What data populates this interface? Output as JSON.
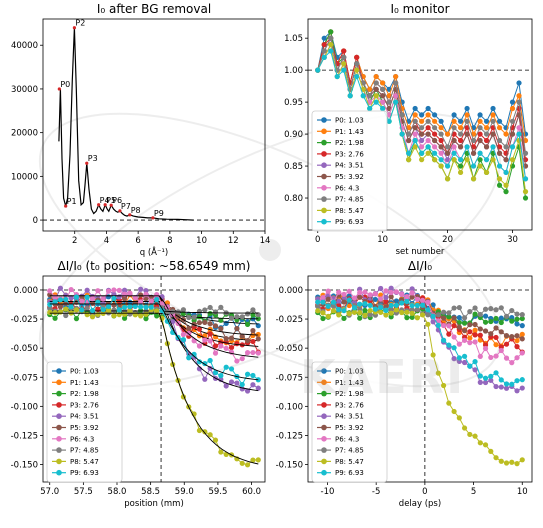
{
  "watermark": "KAERI",
  "legend_entries": [
    {
      "label": "P0: 1.03",
      "color": "#1f77b4"
    },
    {
      "label": "P1: 1.43",
      "color": "#ff7f0e"
    },
    {
      "label": "P2: 1.98",
      "color": "#2ca02c"
    },
    {
      "label": "P3: 2.76",
      "color": "#d62728"
    },
    {
      "label": "P4: 3.51",
      "color": "#9467bd"
    },
    {
      "label": "P5: 3.92",
      "color": "#8c564b"
    },
    {
      "label": "P6: 4.3",
      "color": "#e377c2"
    },
    {
      "label": "P7: 4.85",
      "color": "#7f7f7f"
    },
    {
      "label": "P8: 5.47",
      "color": "#bcbd22"
    },
    {
      "label": "P9: 6.93",
      "color": "#17becf"
    }
  ],
  "chart_data": [
    {
      "type": "line",
      "title": "I₀ after BG removal",
      "xlabel": "q (Å⁻¹)",
      "ylabel": "",
      "xlim": [
        0,
        14
      ],
      "ylim": [
        -2500,
        46000
      ],
      "xticks": [
        "2",
        "4",
        "6",
        "8",
        "10",
        "12",
        "14"
      ],
      "yticks": [
        "0",
        "10000",
        "20000",
        "30000",
        "40000"
      ],
      "grid": false,
      "x": [
        1.0,
        1.1,
        1.2,
        1.3,
        1.43,
        1.55,
        1.7,
        1.85,
        1.98,
        2.1,
        2.25,
        2.4,
        2.55,
        2.65,
        2.76,
        2.9,
        3.05,
        3.2,
        3.35,
        3.51,
        3.65,
        3.78,
        3.92,
        4.05,
        4.15,
        4.3,
        4.45,
        4.6,
        4.72,
        4.85,
        5.0,
        5.15,
        5.3,
        5.47,
        5.7,
        6.0,
        6.3,
        6.6,
        6.93,
        7.3,
        7.8,
        8.5,
        9.0,
        9.5
      ],
      "values": [
        18000,
        30000,
        14000,
        5000,
        3200,
        5000,
        15000,
        32000,
        44000,
        30000,
        9000,
        3500,
        4000,
        8000,
        13000,
        7000,
        2500,
        1500,
        2000,
        3500,
        2500,
        2000,
        3500,
        2500,
        2000,
        3400,
        2500,
        2000,
        1800,
        2100,
        1500,
        1100,
        900,
        1200,
        900,
        700,
        600,
        500,
        500,
        300,
        200,
        150,
        80,
        0
      ],
      "peaks": [
        {
          "label": "P0",
          "x": 1.03,
          "y": 30000
        },
        {
          "label": "P1",
          "x": 1.43,
          "y": 3200
        },
        {
          "label": "P2",
          "x": 1.98,
          "y": 44000
        },
        {
          "label": "P3",
          "x": 2.76,
          "y": 13000
        },
        {
          "label": "P4",
          "x": 3.51,
          "y": 3500
        },
        {
          "label": "P5",
          "x": 3.92,
          "y": 3500
        },
        {
          "label": "P6",
          "x": 4.3,
          "y": 3400
        },
        {
          "label": "P7",
          "x": 4.85,
          "y": 2100
        },
        {
          "label": "P8",
          "x": 5.47,
          "y": 1200
        },
        {
          "label": "P9",
          "x": 6.93,
          "y": 500
        }
      ],
      "reference_line": 0
    },
    {
      "type": "line",
      "title": "I₀ monitor",
      "xlabel": "set number",
      "ylabel": "",
      "xlim": [
        -1.5,
        33
      ],
      "ylim": [
        0.75,
        1.08
      ],
      "xticks": [
        "0",
        "10",
        "20",
        "30"
      ],
      "yticks": [
        "0.80",
        "0.85",
        "0.90",
        "0.95",
        "1.00",
        "1.05"
      ],
      "reference_line": 1.0,
      "legend_position": "lower-left",
      "x": [
        0,
        1,
        2,
        3,
        4,
        5,
        6,
        7,
        8,
        9,
        10,
        11,
        12,
        13,
        14,
        15,
        16,
        17,
        18,
        19,
        20,
        21,
        22,
        23,
        24,
        25,
        26,
        27,
        28,
        29,
        30,
        31,
        32
      ],
      "series": [
        {
          "name": "P0: 1.03",
          "values": [
            1.0,
            1.05,
            1.06,
            1.02,
            1.03,
            0.98,
            1.02,
            0.99,
            0.97,
            0.99,
            0.98,
            0.97,
            0.99,
            0.95,
            0.92,
            0.94,
            0.93,
            0.94,
            0.93,
            0.92,
            0.9,
            0.93,
            0.92,
            0.94,
            0.91,
            0.93,
            0.92,
            0.94,
            0.92,
            0.91,
            0.95,
            0.98,
            0.9
          ]
        },
        {
          "name": "P1: 1.43",
          "values": [
            1.0,
            1.04,
            1.06,
            1.01,
            1.03,
            0.98,
            1.02,
            0.99,
            0.97,
            0.99,
            0.98,
            0.96,
            0.99,
            0.94,
            0.91,
            0.93,
            0.92,
            0.93,
            0.92,
            0.91,
            0.9,
            0.92,
            0.91,
            0.93,
            0.9,
            0.92,
            0.91,
            0.93,
            0.91,
            0.9,
            0.94,
            0.96,
            0.89
          ]
        },
        {
          "name": "P2: 1.98",
          "values": [
            1.0,
            1.04,
            1.06,
            1.01,
            1.02,
            0.97,
            1.01,
            0.98,
            0.95,
            0.97,
            0.95,
            0.93,
            0.96,
            0.9,
            0.86,
            0.89,
            0.87,
            0.88,
            0.86,
            0.85,
            0.83,
            0.86,
            0.85,
            0.87,
            0.83,
            0.86,
            0.84,
            0.87,
            0.82,
            0.81,
            0.85,
            0.88,
            0.8
          ]
        },
        {
          "name": "P3: 2.76",
          "values": [
            1.0,
            1.04,
            1.05,
            1.01,
            1.03,
            0.98,
            1.02,
            0.98,
            0.96,
            0.98,
            0.97,
            0.95,
            0.98,
            0.93,
            0.9,
            0.92,
            0.9,
            0.91,
            0.9,
            0.89,
            0.87,
            0.9,
            0.89,
            0.91,
            0.88,
            0.9,
            0.89,
            0.91,
            0.88,
            0.87,
            0.91,
            0.94,
            0.86
          ]
        },
        {
          "name": "P4: 3.51",
          "values": [
            1.0,
            1.03,
            1.05,
            1.0,
            1.02,
            0.97,
            1.01,
            0.98,
            0.96,
            0.97,
            0.96,
            0.94,
            0.97,
            0.92,
            0.89,
            0.91,
            0.89,
            0.9,
            0.89,
            0.88,
            0.86,
            0.89,
            0.88,
            0.9,
            0.87,
            0.89,
            0.88,
            0.9,
            0.87,
            0.86,
            0.9,
            0.93,
            0.85
          ]
        },
        {
          "name": "P5: 3.92",
          "values": [
            1.0,
            1.03,
            1.05,
            1.0,
            1.02,
            0.97,
            1.01,
            0.98,
            0.96,
            0.97,
            0.96,
            0.94,
            0.97,
            0.92,
            0.89,
            0.91,
            0.9,
            0.9,
            0.89,
            0.88,
            0.87,
            0.89,
            0.88,
            0.9,
            0.87,
            0.89,
            0.88,
            0.9,
            0.87,
            0.86,
            0.9,
            0.93,
            0.85
          ]
        },
        {
          "name": "P6: 4.3",
          "values": [
            1.0,
            1.02,
            1.04,
            0.99,
            1.01,
            0.96,
            1.0,
            0.97,
            0.95,
            0.96,
            0.95,
            0.93,
            0.96,
            0.91,
            0.87,
            0.9,
            0.88,
            0.89,
            0.88,
            0.87,
            0.85,
            0.88,
            0.86,
            0.88,
            0.85,
            0.87,
            0.86,
            0.88,
            0.85,
            0.84,
            0.88,
            0.91,
            0.83
          ]
        },
        {
          "name": "P7: 4.85",
          "values": [
            1.0,
            1.03,
            1.05,
            1.0,
            1.02,
            0.97,
            1.01,
            0.98,
            0.96,
            0.98,
            0.97,
            0.95,
            0.98,
            0.93,
            0.9,
            0.92,
            0.91,
            0.92,
            0.91,
            0.9,
            0.88,
            0.91,
            0.9,
            0.92,
            0.89,
            0.91,
            0.9,
            0.92,
            0.89,
            0.88,
            0.92,
            0.95,
            0.87
          ]
        },
        {
          "name": "P8: 5.47",
          "values": [
            1.0,
            1.02,
            1.04,
            0.99,
            1.01,
            0.96,
            1.0,
            0.97,
            0.94,
            0.96,
            0.94,
            0.92,
            0.95,
            0.9,
            0.86,
            0.88,
            0.86,
            0.87,
            0.86,
            0.85,
            0.83,
            0.86,
            0.84,
            0.86,
            0.83,
            0.85,
            0.84,
            0.86,
            0.83,
            0.82,
            0.86,
            0.89,
            0.81
          ]
        },
        {
          "name": "P9: 6.93",
          "values": [
            1.0,
            1.02,
            1.03,
            0.99,
            1.0,
            0.96,
            0.99,
            0.96,
            0.94,
            0.95,
            0.94,
            0.92,
            0.95,
            0.9,
            0.87,
            0.89,
            0.87,
            0.88,
            0.87,
            0.86,
            0.85,
            0.87,
            0.86,
            0.88,
            0.85,
            0.87,
            0.86,
            0.88,
            0.85,
            0.84,
            0.88,
            0.9,
            0.83
          ]
        }
      ]
    },
    {
      "type": "line",
      "title": "ΔI/I₀ (t₀ position: ~58.6549 mm)",
      "xlabel": "position (mm)",
      "ylabel": "",
      "xlim": [
        56.9,
        60.2
      ],
      "ylim": [
        -0.165,
        0.012
      ],
      "xticks": [
        "57.0",
        "57.5",
        "58.0",
        "58.5",
        "59.0",
        "59.5",
        "60.0"
      ],
      "yticks": [
        "0.000",
        "-0.025",
        "-0.050",
        "-0.075",
        "-0.100",
        "-0.125",
        "-0.150"
      ],
      "reference_line": 0.0,
      "t0_line": 58.6549,
      "legend_position": "lower-left",
      "x_range": [
        57.0,
        60.1
      ],
      "n_points": 40,
      "series": [
        {
          "name": "P0: 1.03",
          "pre": -0.01,
          "final": -0.03,
          "noise": 0.006
        },
        {
          "name": "P1: 1.43",
          "pre": -0.01,
          "final": -0.045,
          "noise": 0.006
        },
        {
          "name": "P2: 1.98",
          "pre": -0.02,
          "final": -0.025,
          "noise": 0.005
        },
        {
          "name": "P3: 2.76",
          "pre": -0.012,
          "final": -0.05,
          "noise": 0.006
        },
        {
          "name": "P4: 3.51",
          "pre": -0.005,
          "final": -0.09,
          "noise": 0.007
        },
        {
          "name": "P5: 3.92",
          "pre": -0.01,
          "final": -0.04,
          "noise": 0.006
        },
        {
          "name": "P6: 4.3",
          "pre": -0.005,
          "final": -0.06,
          "noise": 0.006
        },
        {
          "name": "P7: 4.85",
          "pre": -0.018,
          "final": -0.02,
          "noise": 0.005
        },
        {
          "name": "P8: 5.47",
          "pre": -0.02,
          "final": -0.155,
          "noise": 0.004
        },
        {
          "name": "P9: 6.93",
          "pre": -0.012,
          "final": -0.08,
          "noise": 0.006
        }
      ]
    },
    {
      "type": "line",
      "title": "ΔI/I₀",
      "xlabel": "delay (ps)",
      "ylabel": "",
      "xlim": [
        -12,
        11
      ],
      "ylim": [
        -0.165,
        0.012
      ],
      "xticks": [
        "-10",
        "-5",
        "0",
        "5",
        "10"
      ],
      "yticks": [
        "0.000",
        "-0.025",
        "-0.050",
        "-0.075",
        "-0.100",
        "-0.125",
        "-0.150"
      ],
      "reference_line": 0.0,
      "t0_line": 0,
      "legend_position": "lower-left",
      "x_range": [
        -11,
        10
      ],
      "n_points": 40,
      "series": [
        {
          "name": "P0: 1.03",
          "pre": -0.01,
          "final": -0.03,
          "noise": 0.006
        },
        {
          "name": "P1: 1.43",
          "pre": -0.01,
          "final": -0.045,
          "noise": 0.006
        },
        {
          "name": "P2: 1.98",
          "pre": -0.02,
          "final": -0.025,
          "noise": 0.005
        },
        {
          "name": "P3: 2.76",
          "pre": -0.012,
          "final": -0.05,
          "noise": 0.006
        },
        {
          "name": "P4: 3.51",
          "pre": -0.005,
          "final": -0.09,
          "noise": 0.007
        },
        {
          "name": "P5: 3.92",
          "pre": -0.01,
          "final": -0.04,
          "noise": 0.006
        },
        {
          "name": "P6: 4.3",
          "pre": -0.005,
          "final": -0.06,
          "noise": 0.006
        },
        {
          "name": "P7: 4.85",
          "pre": -0.018,
          "final": -0.02,
          "noise": 0.005
        },
        {
          "name": "P8: 5.47",
          "pre": -0.02,
          "final": -0.155,
          "noise": 0.004
        },
        {
          "name": "P9: 6.93",
          "pre": -0.012,
          "final": -0.08,
          "noise": 0.006
        }
      ]
    }
  ]
}
